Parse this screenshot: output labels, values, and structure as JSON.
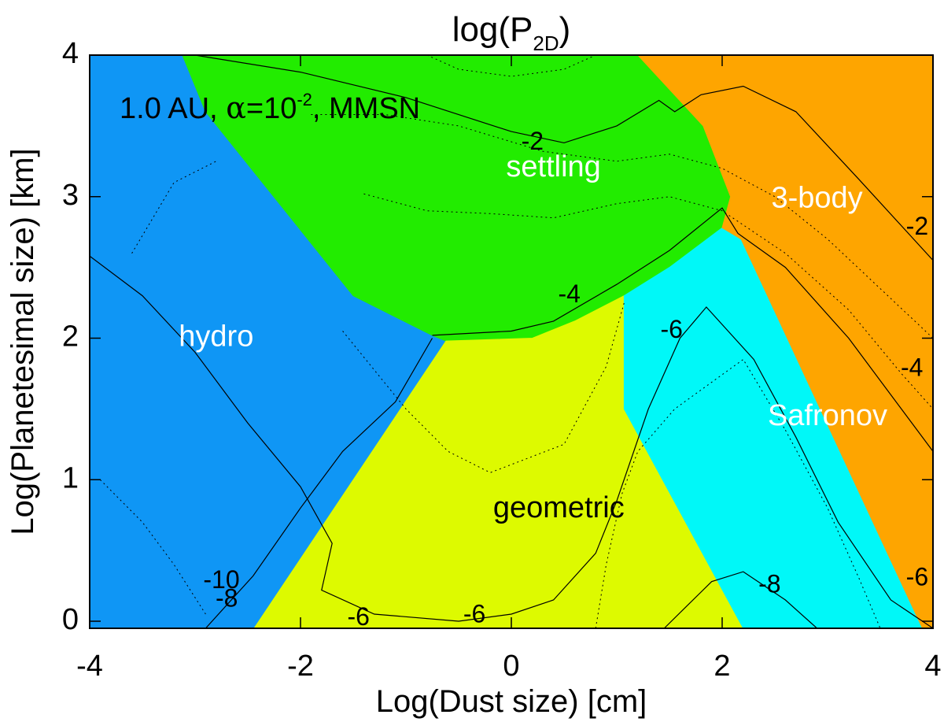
{
  "chart_data": {
    "type": "heatmap",
    "title": "log(P",
    "title_sub": "2D",
    "title_close": ")",
    "xlabel": "Log(Dust size) [cm]",
    "ylabel": "Log(Planetesimal size) [km]",
    "xlim": [
      -4,
      4
    ],
    "ylim": [
      -0.05,
      4.0
    ],
    "x_ticks": [
      "-4",
      "-2",
      "0",
      "2",
      "4"
    ],
    "x_tick_values": [
      -4,
      -2,
      0,
      2,
      4
    ],
    "y_ticks": [
      "0",
      "1",
      "2",
      "3",
      "4"
    ],
    "y_tick_values": [
      0,
      1,
      2,
      3,
      4
    ],
    "annotation": {
      "text_a": "1.0 AU, ",
      "alpha": "α",
      "text_b": "=10",
      "exp": "-2",
      "text_c": ", MMSN"
    },
    "regions": [
      {
        "name": "hydro",
        "color": "#0F96F5",
        "polygon": [
          [
            -4,
            4
          ],
          [
            -3.12,
            4
          ],
          [
            -2.9,
            3.6
          ],
          [
            -1.5,
            2.3
          ],
          [
            -0.75,
            2.02
          ],
          [
            -0.62,
            1.98
          ],
          [
            -2.44,
            -0.05
          ],
          [
            -4,
            -0.05
          ]
        ]
      },
      {
        "name": "settling",
        "color": "#22EC00",
        "polygon": [
          [
            -3.12,
            4
          ],
          [
            1.2,
            4
          ],
          [
            1.82,
            3.5
          ],
          [
            2.08,
            3.0
          ],
          [
            2.0,
            2.78
          ],
          [
            1.5,
            2.5
          ],
          [
            1.07,
            2.3
          ],
          [
            0.6,
            2.12
          ],
          [
            0.2,
            2.0
          ],
          [
            -0.62,
            1.98
          ],
          [
            -0.75,
            2.02
          ],
          [
            -1.5,
            2.3
          ],
          [
            -2.9,
            3.6
          ]
        ]
      },
      {
        "name": "geometric",
        "color": "#DDFA00",
        "polygon": [
          [
            -0.62,
            1.98
          ],
          [
            0.2,
            2.0
          ],
          [
            0.6,
            2.12
          ],
          [
            1.07,
            2.3
          ],
          [
            1.07,
            1.5
          ],
          [
            2.2,
            -0.05
          ],
          [
            -2.44,
            -0.05
          ]
        ]
      },
      {
        "name": "Safronov",
        "color": "#00F8F8",
        "polygon": [
          [
            1.07,
            2.3
          ],
          [
            1.5,
            2.5
          ],
          [
            2.0,
            2.78
          ],
          [
            2.18,
            2.7
          ],
          [
            3.9,
            -0.05
          ],
          [
            2.2,
            -0.05
          ],
          [
            1.07,
            1.5
          ]
        ]
      },
      {
        "name": "3-body",
        "color": "#FEA500",
        "polygon": [
          [
            1.2,
            4
          ],
          [
            4,
            4
          ],
          [
            4,
            -0.05
          ],
          [
            3.9,
            -0.05
          ],
          [
            2.18,
            2.7
          ],
          [
            2.0,
            2.78
          ],
          [
            2.08,
            3.0
          ],
          [
            1.82,
            3.5
          ]
        ]
      }
    ],
    "region_labels": [
      {
        "text": "hydro",
        "x": -2.8,
        "y": 2.0,
        "color": "#ffffff"
      },
      {
        "text": "settling",
        "x": 0.4,
        "y": 3.2,
        "color": "#ffffff"
      },
      {
        "text": "3-body",
        "x": 2.9,
        "y": 2.98,
        "color": "#ffffff"
      },
      {
        "text": "Safronov",
        "x": 3.0,
        "y": 1.44,
        "color": "#ffffff"
      },
      {
        "text": "geometric",
        "x": 0.45,
        "y": 0.79,
        "color": "#000000"
      }
    ],
    "contours_solid": [
      {
        "level": -2,
        "points": [
          [
            -3.0,
            4.0
          ],
          [
            -2.0,
            3.88
          ],
          [
            -1.0,
            3.7
          ],
          [
            0.0,
            3.46
          ],
          [
            0.5,
            3.38
          ],
          [
            1.0,
            3.5
          ],
          [
            1.4,
            3.68
          ],
          [
            1.55,
            3.6
          ],
          [
            1.8,
            3.72
          ],
          [
            2.2,
            3.78
          ],
          [
            2.7,
            3.6
          ],
          [
            3.3,
            3.12
          ],
          [
            4.0,
            2.55
          ]
        ]
      },
      {
        "level": -4,
        "points": [
          [
            -0.75,
            2.02
          ],
          [
            0.0,
            2.05
          ],
          [
            0.4,
            2.12
          ],
          [
            1.0,
            2.38
          ],
          [
            1.5,
            2.62
          ],
          [
            2.0,
            2.92
          ],
          [
            2.15,
            2.74
          ],
          [
            2.6,
            2.5
          ],
          [
            3.2,
            2.0
          ],
          [
            3.7,
            1.5
          ],
          [
            4.0,
            1.2
          ]
        ]
      },
      {
        "level": -6,
        "points": [
          [
            -4.0,
            2.58
          ],
          [
            -3.5,
            2.3
          ],
          [
            -3.0,
            1.9
          ],
          [
            -2.5,
            1.4
          ],
          [
            -2.0,
            0.95
          ],
          [
            -1.7,
            0.55
          ],
          [
            -1.8,
            0.22
          ],
          [
            -1.3,
            0.05
          ],
          [
            -0.5,
            0.0
          ],
          [
            0.0,
            0.05
          ],
          [
            0.4,
            0.15
          ],
          [
            0.8,
            0.48
          ],
          [
            1.0,
            0.85
          ],
          [
            1.3,
            1.5
          ],
          [
            1.6,
            2.0
          ],
          [
            1.85,
            2.22
          ],
          [
            2.3,
            1.85
          ],
          [
            2.7,
            1.3
          ],
          [
            3.1,
            0.7
          ],
          [
            3.6,
            0.15
          ],
          [
            4.0,
            -0.05
          ]
        ]
      },
      {
        "level": -8,
        "points": [
          [
            1.45,
            -0.05
          ],
          [
            1.9,
            0.28
          ],
          [
            2.2,
            0.35
          ],
          [
            2.6,
            0.15
          ],
          [
            2.9,
            -0.05
          ]
        ]
      },
      {
        "level": -10,
        "points": [
          [
            -2.9,
            -0.05
          ],
          [
            -2.45,
            0.32
          ],
          [
            -2.0,
            0.8
          ],
          [
            -1.6,
            1.2
          ],
          [
            -1.1,
            1.55
          ],
          [
            -0.75,
            2.0
          ]
        ]
      }
    ],
    "contours_dotted": [
      {
        "points": [
          [
            -1.9,
            3.58
          ],
          [
            -1.2,
            3.58
          ],
          [
            -0.5,
            3.5
          ],
          [
            0.3,
            3.32
          ],
          [
            1.0,
            3.25
          ],
          [
            1.5,
            3.3
          ],
          [
            2.0,
            3.2
          ],
          [
            2.5,
            3.0
          ],
          [
            3.0,
            2.7
          ],
          [
            3.5,
            2.35
          ],
          [
            4.0,
            2.0
          ]
        ]
      },
      {
        "points": [
          [
            -1.4,
            3.02
          ],
          [
            -0.8,
            2.9
          ],
          [
            -0.2,
            2.88
          ],
          [
            0.4,
            2.85
          ],
          [
            1.0,
            2.95
          ],
          [
            1.5,
            3.0
          ],
          [
            2.0,
            2.9
          ],
          [
            2.6,
            2.6
          ],
          [
            3.2,
            2.2
          ],
          [
            3.7,
            1.75
          ],
          [
            4.0,
            1.5
          ]
        ]
      },
      {
        "points": [
          [
            -0.8,
            4.0
          ],
          [
            -0.5,
            3.9
          ],
          [
            0.0,
            3.85
          ],
          [
            0.5,
            3.9
          ],
          [
            0.8,
            4.0
          ]
        ]
      },
      {
        "points": [
          [
            -3.9,
            1.0
          ],
          [
            -3.5,
            0.7
          ],
          [
            -3.2,
            0.4
          ],
          [
            -2.9,
            0.05
          ]
        ]
      },
      {
        "points": [
          [
            -1.6,
            2.05
          ],
          [
            -1.0,
            1.5
          ],
          [
            -0.6,
            1.2
          ],
          [
            -0.2,
            1.05
          ],
          [
            0.5,
            1.25
          ],
          [
            0.9,
            1.8
          ],
          [
            1.07,
            2.25
          ]
        ]
      },
      {
        "points": [
          [
            -3.6,
            2.6
          ],
          [
            -3.2,
            3.1
          ],
          [
            -2.8,
            3.25
          ]
        ]
      },
      {
        "points": [
          [
            0.8,
            -0.05
          ],
          [
            0.9,
            0.4
          ],
          [
            1.05,
            0.9
          ],
          [
            1.2,
            1.2
          ],
          [
            1.55,
            1.5
          ],
          [
            2.2,
            1.85
          ],
          [
            2.6,
            1.35
          ]
        ]
      },
      {
        "points": [
          [
            2.6,
            1.35
          ],
          [
            3.0,
            0.8
          ],
          [
            3.3,
            0.3
          ],
          [
            3.5,
            -0.05
          ]
        ]
      }
    ],
    "contour_labels": [
      {
        "text": "-2",
        "x": 0.2,
        "y": 3.38
      },
      {
        "text": "-2",
        "x": 3.85,
        "y": 2.78
      },
      {
        "text": "-4",
        "x": 0.55,
        "y": 2.3
      },
      {
        "text": "-4",
        "x": 3.8,
        "y": 1.78
      },
      {
        "text": "-6",
        "x": 1.52,
        "y": 2.05
      },
      {
        "text": "-6",
        "x": 3.85,
        "y": 0.3
      },
      {
        "text": "-6",
        "x": -1.45,
        "y": 0.02
      },
      {
        "text": "-6",
        "x": -0.35,
        "y": 0.04
      },
      {
        "text": "-8",
        "x": 2.45,
        "y": 0.25
      },
      {
        "text": "-8",
        "x": -2.7,
        "y": 0.15
      },
      {
        "text": "-10",
        "x": -2.75,
        "y": 0.28
      }
    ]
  }
}
